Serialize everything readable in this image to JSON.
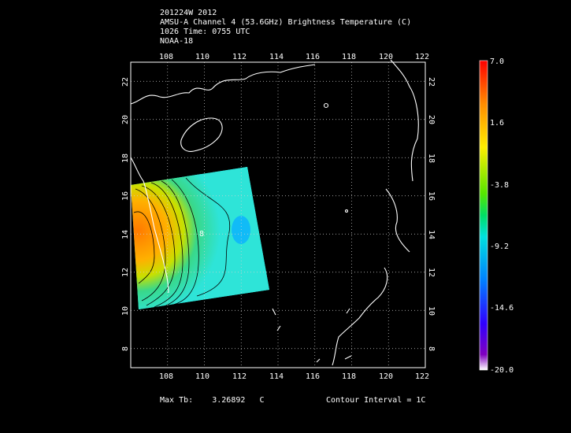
{
  "header": {
    "line1": "201224W 2012",
    "line2": "AMSU-A Channel 4 (53.6GHz) Brightness Temperature (C)",
    "line3": "1026 Time: 0755 UTC",
    "line4": "NOAA-18"
  },
  "map": {
    "lon_ticks": [
      "108",
      "110",
      "112",
      "114",
      "116",
      "118",
      "120",
      "122"
    ],
    "lat_ticks": [
      "22",
      "20",
      "18",
      "16",
      "14",
      "12",
      "10",
      "8"
    ],
    "lon_range": [
      106,
      122
    ],
    "lat_range": [
      7,
      23
    ],
    "grid": true,
    "contour_label": "8"
  },
  "colorbar": {
    "labels": [
      "7.0",
      "1.6",
      "-3.8",
      "-9.2",
      "-14.6",
      "-20.0"
    ],
    "range": [
      -20.0,
      7.0
    ]
  },
  "footer": {
    "max_label": "Max Tb:",
    "max_value": "3.26892",
    "max_unit": "C",
    "contour_interval": "Contour Interval = 1C"
  },
  "colors": {
    "background": "#000000",
    "grid": "#cccccc",
    "coast": "#ffffff"
  }
}
